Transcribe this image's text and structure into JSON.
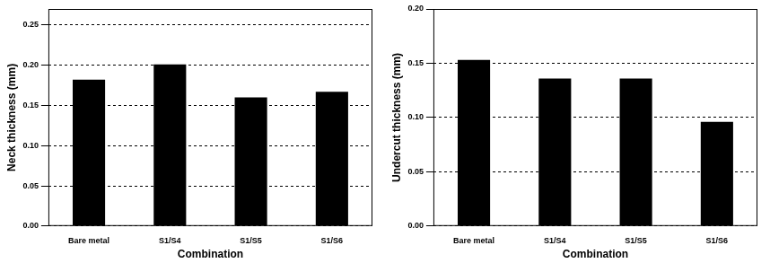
{
  "chart_data": [
    {
      "type": "bar",
      "categories": [
        "Bare metal",
        "S1/S4",
        "S1/S5",
        "S1/S6"
      ],
      "values": [
        0.182,
        0.201,
        0.16,
        0.167
      ],
      "color": "#000000",
      "x_label": "Combination",
      "y_label": "Neck thickness (mm)",
      "ylim": [
        0,
        0.27
      ],
      "yticks": [
        {
          "value": 0,
          "label": "0.00"
        },
        0.05,
        {
          "value": 0.1,
          "label": "0.10"
        },
        0.15,
        {
          "value": 0.2,
          "label": "0.20"
        },
        0.25
      ],
      "grid": true
    },
    {
      "type": "bar",
      "categories": [
        "Bare metal",
        "S1/S4",
        "S1/S5",
        "S1/S6"
      ],
      "values": [
        0.153,
        0.136,
        0.136,
        0.096
      ],
      "color": "#000000",
      "x_label": "Combination",
      "y_label": "Undercut thickness (mm)",
      "ylim": [
        0,
        0.2
      ],
      "yticks": [
        {
          "value": 0,
          "label": "0.00"
        },
        0.05,
        {
          "value": 0.1,
          "label": "0.10"
        },
        0.15,
        {
          "value": 0.2,
          "label": "0.20"
        }
      ],
      "grid": true
    }
  ]
}
